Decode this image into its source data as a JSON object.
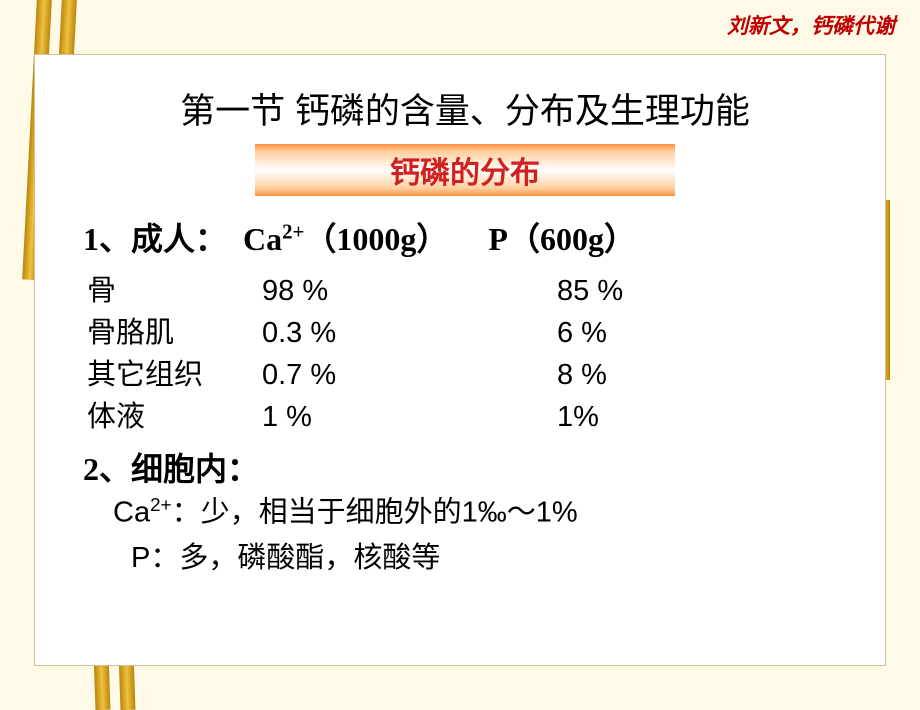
{
  "header_note": "刘新文，钙磷代谢",
  "title": "第一节  钙磷的含量、分布及生理功能",
  "subtitle": "钙磷的分布",
  "section1": {
    "prefix": "1、成人：",
    "ca_label_a": "Ca",
    "ca_label_sup": "2+",
    "ca_label_b": "（1000g）",
    "p_label": "P（600g）"
  },
  "table": {
    "rows": [
      {
        "label": " 骨",
        "ca": "98 %",
        "p": "85 %"
      },
      {
        "label": " 骨胳肌",
        "ca": "0.3 %",
        "p": " 6 %"
      },
      {
        "label": " 其它组织",
        "ca": "0.7 %",
        "p": " 8 %"
      },
      {
        "label": " 体液",
        "ca": "1 %",
        "p": " 1%"
      }
    ]
  },
  "section2": "2、细胞内：",
  "ca_line_a": "Ca",
  "ca_line_sup": "2+",
  "ca_line_b": "：少，相当于细胞外的1‰～1%",
  "p_line": "P：多，磷酸酯，核酸等",
  "colors": {
    "slide_bg": "#fff9e8",
    "content_bg": "#ffffff",
    "accent_red": "#d02020",
    "header_red": "#c00000",
    "bar_gold_dark": "#b8860b",
    "bar_gold_light": "#f0c040",
    "subtitle_grad_outer": "#ff9040",
    "subtitle_grad_inner": "#ffffff"
  }
}
